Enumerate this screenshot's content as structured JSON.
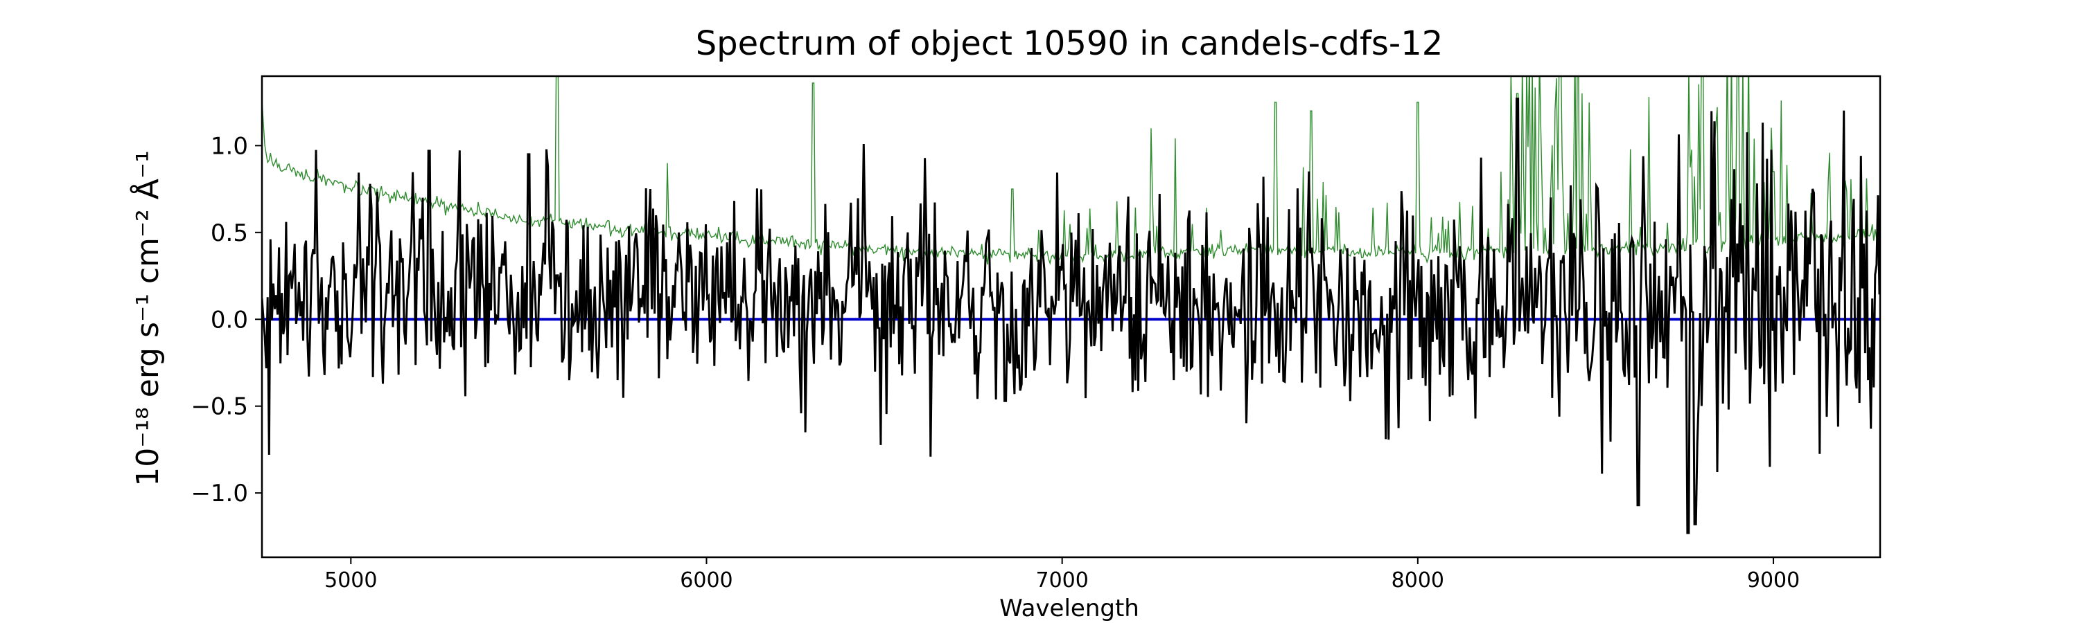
{
  "chart_data": {
    "type": "line",
    "title": "Spectrum of object 10590 in candels-cdfs-12",
    "xlabel": "Wavelength",
    "ylabel": "10⁻¹⁸ erg s⁻¹ cm⁻² Å⁻¹",
    "xlim": [
      4750,
      9300
    ],
    "ylim": [
      -1.37,
      1.4
    ],
    "x_ticks": [
      5000,
      6000,
      7000,
      8000,
      9000
    ],
    "x_tick_labels": [
      "5000",
      "6000",
      "7000",
      "8000",
      "9000"
    ],
    "y_ticks": [
      1.0,
      0.5,
      0.0,
      -0.5,
      -1.0
    ],
    "y_tick_labels": [
      "1.0",
      "0.5",
      "0.0",
      "−0.5",
      "−1.0"
    ],
    "grid": false,
    "legend": "none",
    "series": [
      {
        "role": "flux",
        "color": "#000000",
        "x_range": [
          4750,
          9300
        ],
        "approx_envelope": [
          0.0,
          0.25
        ],
        "notable_features": [
          {
            "x": 4770,
            "y": -0.78
          },
          {
            "x": 5220,
            "y": 0.97
          },
          {
            "x": 5500,
            "y": 0.95
          },
          {
            "x": 6840,
            "y": -0.47
          },
          {
            "x": 7910,
            "y": -0.69
          },
          {
            "x": 8280,
            "y": 1.27
          },
          {
            "x": 8620,
            "y": -1.07
          },
          {
            "x": 8760,
            "y": -1.23
          },
          {
            "x": 8780,
            "y": -1.18
          },
          {
            "x": 8990,
            "y": -0.85
          }
        ]
      },
      {
        "role": "error",
        "color": "#2e8b2e",
        "x_range": [
          4750,
          9300
        ],
        "continuum": [
          [
            4750,
            1.25
          ],
          [
            4760,
            0.95
          ],
          [
            4800,
            0.88
          ],
          [
            5000,
            0.75
          ],
          [
            5500,
            0.57
          ],
          [
            6000,
            0.48
          ],
          [
            6500,
            0.4
          ],
          [
            7000,
            0.36
          ],
          [
            7500,
            0.4
          ],
          [
            8000,
            0.38
          ],
          [
            8500,
            0.4
          ],
          [
            9000,
            0.45
          ],
          [
            9300,
            0.48
          ]
        ],
        "spikes": [
          {
            "x": 5580,
            "y": 1.6
          },
          {
            "x": 5890,
            "y": 0.9
          },
          {
            "x": 6300,
            "y": 1.36
          },
          {
            "x": 6860,
            "y": 0.75
          },
          {
            "x": 7250,
            "y": 1.1
          },
          {
            "x": 7600,
            "y": 1.25
          },
          {
            "x": 7700,
            "y": 1.2
          },
          {
            "x": 8000,
            "y": 1.25
          },
          {
            "x": 8280,
            "y": 1.3
          },
          {
            "x": 8400,
            "y": 1.6
          },
          {
            "x": 8650,
            "y": 1.28
          },
          {
            "x": 8800,
            "y": 1.6
          },
          {
            "x": 8900,
            "y": 1.5
          },
          {
            "x": 9000,
            "y": 0.85
          }
        ]
      },
      {
        "role": "zero-line",
        "color": "#0000cc",
        "x": [
          4750,
          9300
        ],
        "y": [
          0.0,
          0.0
        ]
      }
    ]
  }
}
